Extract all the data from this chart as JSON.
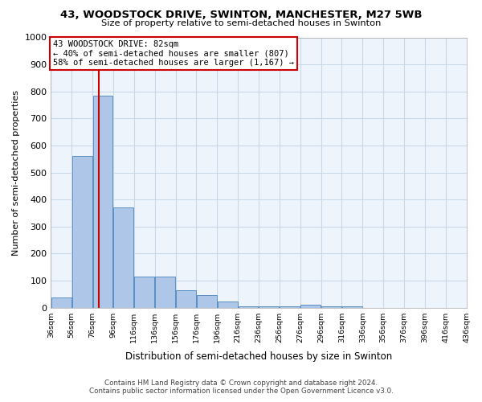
{
  "title1": "43, WOODSTOCK DRIVE, SWINTON, MANCHESTER, M27 5WB",
  "title2": "Size of property relative to semi-detached houses in Swinton",
  "xlabel": "Distribution of semi-detached houses by size in Swinton",
  "ylabel": "Number of semi-detached properties",
  "bins": [
    36,
    56,
    76,
    96,
    116,
    136,
    156,
    176,
    196,
    216,
    236,
    256,
    276,
    296,
    316,
    336,
    356,
    376,
    396,
    416,
    436
  ],
  "bin_labels": [
    "36sqm",
    "56sqm",
    "76sqm",
    "96sqm",
    "116sqm",
    "136sqm",
    "156sqm",
    "176sqm",
    "196sqm",
    "216sqm",
    "236sqm",
    "256sqm",
    "276sqm",
    "296sqm",
    "316sqm",
    "336sqm",
    "356sqm",
    "376sqm",
    "396sqm",
    "416sqm",
    "436sqm"
  ],
  "bar_heights": [
    37,
    560,
    785,
    370,
    115,
    115,
    63,
    46,
    22,
    5,
    5,
    5,
    10,
    5,
    5,
    0,
    0,
    0,
    0,
    0
  ],
  "bar_color": "#aec6e8",
  "bar_edge_color": "#5a8fc2",
  "property_size": 82,
  "vline_x": 82,
  "vline_color": "#cc0000",
  "annotation_text": "43 WOODSTOCK DRIVE: 82sqm\n← 40% of semi-detached houses are smaller (807)\n58% of semi-detached houses are larger (1,167) →",
  "annotation_box_color": "#ffffff",
  "annotation_box_edge": "#cc0000",
  "ylim": [
    0,
    1000
  ],
  "yticks": [
    0,
    100,
    200,
    300,
    400,
    500,
    600,
    700,
    800,
    900,
    1000
  ],
  "grid_color": "#c8d8e8",
  "bg_color": "#eef4fb",
  "footer1": "Contains HM Land Registry data © Crown copyright and database right 2024.",
  "footer2": "Contains public sector information licensed under the Open Government Licence v3.0."
}
